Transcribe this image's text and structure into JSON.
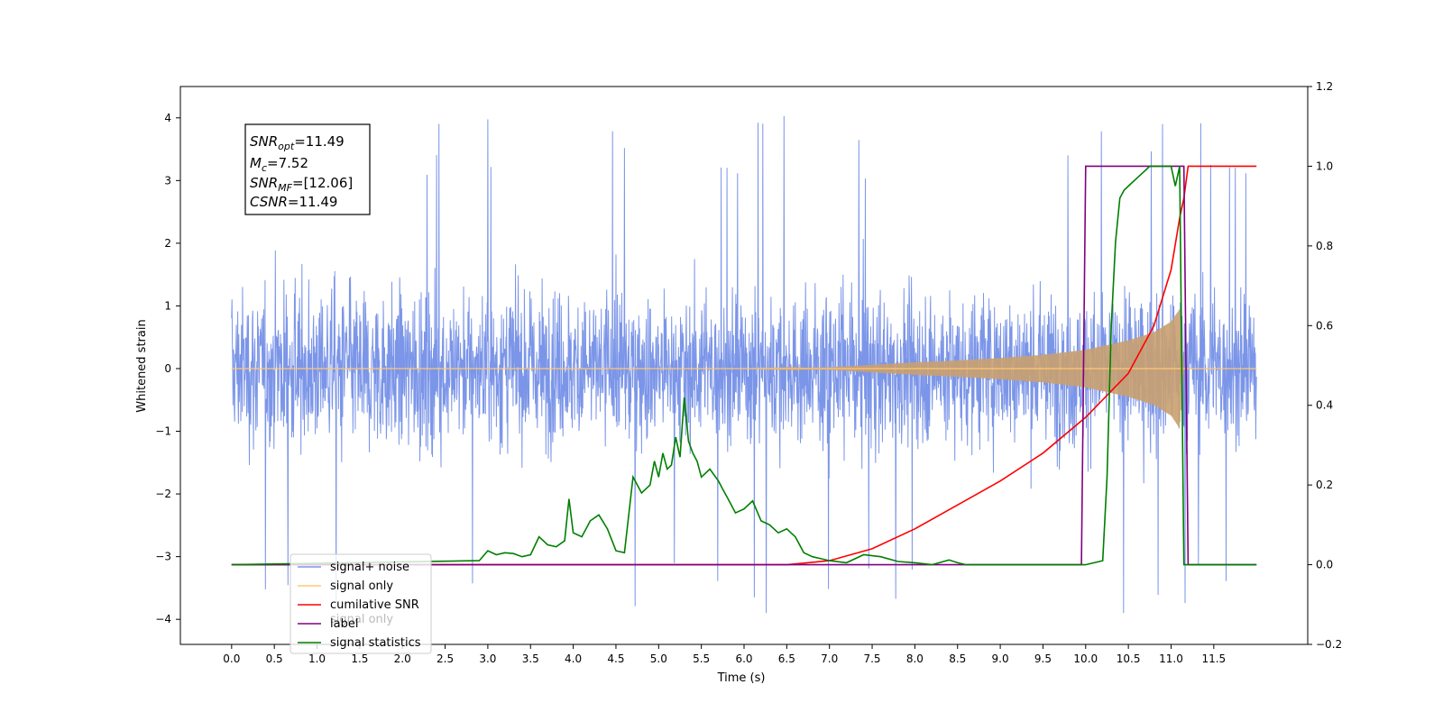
{
  "chart_data": {
    "type": "line",
    "xlabel": "Time (s)",
    "ylabel": "Whitened strain",
    "xlim": [
      -0.6,
      12.6
    ],
    "ylim": [
      -4.4,
      4.5
    ],
    "y2lim": [
      -0.2,
      1.2
    ],
    "x_ticks": [
      "0.0",
      "0.5",
      "1.0",
      "1.5",
      "2.0",
      "2.5",
      "3.0",
      "3.5",
      "4.0",
      "4.5",
      "5.0",
      "5.5",
      "6.0",
      "6.5",
      "7.0",
      "7.5",
      "8.0",
      "8.5",
      "9.0",
      "9.5",
      "10.0",
      "10.5",
      "11.0",
      "11.5"
    ],
    "y_ticks": [
      "4",
      "3",
      "2",
      "1",
      "0",
      "−1",
      "−2",
      "−3",
      "−4"
    ],
    "y2_ticks": [
      "1.2",
      "1.0",
      "0.8",
      "0.6",
      "0.4",
      "0.2",
      "0.0",
      "−0.2"
    ],
    "info_box": {
      "snr_opt": "=11.49",
      "mc": "=7.52",
      "snr_mf": "=[12.06]",
      "csnr": "=11.49"
    },
    "legend": {
      "location": "lower left",
      "entries": [
        {
          "label": "signal+ noise",
          "color": "#7b95e8"
        },
        {
          "label": "signal only",
          "color": "#ffc870"
        },
        {
          "label": "cumilative SNR",
          "color": "#ff0000"
        },
        {
          "label": "label",
          "color": "#800080"
        },
        {
          "label": "signal statistics",
          "color": "#007f00"
        }
      ],
      "ghost_text": "signal only"
    },
    "series": [
      {
        "name": "signal+ noise",
        "axis": "left",
        "description": "whitened noise, spread ±~2.3, spikes to ±4.1",
        "noise_band": [
          -2.3,
          2.3
        ],
        "x_range": [
          0.0,
          12.0
        ]
      },
      {
        "name": "signal only",
        "axis": "left",
        "envelope_x": [
          6.0,
          7.0,
          7.5,
          8.0,
          8.5,
          9.0,
          9.5,
          10.0,
          10.5,
          10.8,
          11.0,
          11.1,
          11.15
        ],
        "envelope_y": [
          0.0,
          0.02,
          0.06,
          0.1,
          0.13,
          0.17,
          0.22,
          0.3,
          0.45,
          0.58,
          0.75,
          0.95,
          0.0
        ]
      },
      {
        "name": "cumilative SNR",
        "axis": "right",
        "x": [
          0.0,
          6.5,
          7.0,
          7.5,
          8.0,
          8.5,
          9.0,
          9.5,
          10.0,
          10.5,
          10.8,
          11.0,
          11.1,
          11.15,
          11.2,
          12.0
        ],
        "y": [
          0.0,
          0.0,
          0.01,
          0.04,
          0.09,
          0.15,
          0.21,
          0.28,
          0.37,
          0.48,
          0.6,
          0.74,
          0.87,
          0.92,
          1.0,
          1.0
        ]
      },
      {
        "name": "label",
        "axis": "right",
        "x": [
          0.0,
          9.95,
          10.0,
          11.15,
          11.2,
          12.0
        ],
        "y": [
          0.0,
          0.0,
          1.0,
          1.0,
          0.0,
          0.0
        ]
      },
      {
        "name": "signal statistics",
        "axis": "right",
        "x": [
          0.0,
          2.9,
          3.0,
          3.1,
          3.2,
          3.3,
          3.4,
          3.5,
          3.6,
          3.7,
          3.8,
          3.9,
          3.95,
          4.0,
          4.05,
          4.1,
          4.2,
          4.3,
          4.4,
          4.5,
          4.6,
          4.7,
          4.8,
          4.9,
          4.95,
          5.0,
          5.05,
          5.1,
          5.15,
          5.2,
          5.25,
          5.3,
          5.35,
          5.4,
          5.45,
          5.5,
          5.6,
          5.7,
          5.75,
          5.8,
          5.9,
          6.0,
          6.1,
          6.2,
          6.3,
          6.4,
          6.5,
          6.6,
          6.7,
          6.8,
          6.9,
          7.0,
          7.2,
          7.4,
          7.6,
          7.8,
          8.0,
          8.2,
          8.4,
          8.5,
          8.6,
          9.0,
          10.0,
          10.2,
          10.25,
          10.3,
          10.35,
          10.4,
          10.45,
          10.5,
          10.6,
          10.7,
          10.75,
          10.8,
          10.9,
          11.0,
          11.05,
          11.1,
          11.15,
          11.2,
          12.0
        ],
        "y": [
          0.0,
          0.01,
          0.035,
          0.025,
          0.03,
          0.028,
          0.02,
          0.025,
          0.07,
          0.05,
          0.045,
          0.06,
          0.165,
          0.08,
          0.075,
          0.07,
          0.11,
          0.125,
          0.09,
          0.035,
          0.03,
          0.22,
          0.18,
          0.2,
          0.26,
          0.22,
          0.28,
          0.24,
          0.25,
          0.32,
          0.27,
          0.42,
          0.31,
          0.28,
          0.26,
          0.22,
          0.24,
          0.21,
          0.19,
          0.17,
          0.13,
          0.14,
          0.16,
          0.11,
          0.1,
          0.08,
          0.09,
          0.07,
          0.03,
          0.02,
          0.015,
          0.01,
          0.005,
          0.025,
          0.02,
          0.008,
          0.005,
          0.0,
          0.012,
          0.005,
          0.0,
          0.0,
          0.0,
          0.01,
          0.22,
          0.6,
          0.81,
          0.92,
          0.94,
          0.95,
          0.97,
          0.99,
          1.0,
          1.0,
          1.0,
          1.0,
          0.95,
          1.0,
          0.0,
          0.0,
          0.0
        ]
      }
    ]
  }
}
